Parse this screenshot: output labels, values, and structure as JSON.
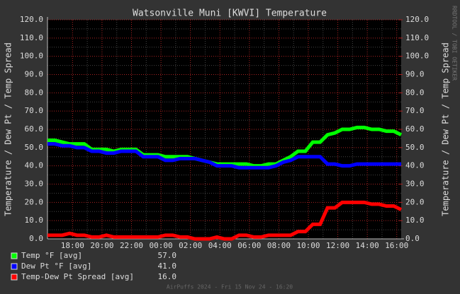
{
  "chart_data": {
    "type": "line",
    "title": "Watsonville Muni [KWVI] Temperature",
    "ylabel": "Temperature / Dew Pt / Temp Spread",
    "watermark": "RRDTOOL / TOBI OETIKER",
    "footer": "AirPuffs 2024 - Fri 15 Nov 24 - 16:20",
    "x": [
      0,
      0.5,
      1,
      1.5,
      2,
      2.5,
      3,
      3.5,
      4,
      4.5,
      5,
      5.5,
      6,
      6.5,
      7,
      7.5,
      8,
      8.5,
      9,
      9.5,
      10,
      10.5,
      11,
      11.5,
      12,
      12.5,
      13,
      13.5,
      14,
      14.5,
      15,
      15.5,
      16,
      16.5,
      17,
      17.5,
      18,
      18.5,
      19,
      19.5,
      20,
      20.5,
      21,
      21.5,
      22,
      22.5,
      23,
      23.5,
      24
    ],
    "xlim": [
      0,
      24
    ],
    "xticks": [
      {
        "value": 1.7,
        "label": "18:00"
      },
      {
        "value": 3.7,
        "label": "20:00"
      },
      {
        "value": 5.7,
        "label": "22:00"
      },
      {
        "value": 7.7,
        "label": "00:00"
      },
      {
        "value": 9.7,
        "label": "02:00"
      },
      {
        "value": 11.7,
        "label": "04:00"
      },
      {
        "value": 13.7,
        "label": "06:00"
      },
      {
        "value": 15.7,
        "label": "08:00"
      },
      {
        "value": 17.7,
        "label": "10:00"
      },
      {
        "value": 19.7,
        "label": "12:00"
      },
      {
        "value": 21.7,
        "label": "14:00"
      },
      {
        "value": 23.7,
        "label": "16:00"
      }
    ],
    "ylim": [
      0,
      120
    ],
    "yticks": [
      {
        "value": 0,
        "label": "0.0"
      },
      {
        "value": 10,
        "label": "10.0"
      },
      {
        "value": 20,
        "label": "20.0"
      },
      {
        "value": 30,
        "label": "30.0"
      },
      {
        "value": 40,
        "label": "40.0"
      },
      {
        "value": 50,
        "label": "50.0"
      },
      {
        "value": 60,
        "label": "60.0"
      },
      {
        "value": 70,
        "label": "70.0"
      },
      {
        "value": 80,
        "label": "80.0"
      },
      {
        "value": 90,
        "label": "90.0"
      },
      {
        "value": 100,
        "label": "100.0"
      },
      {
        "value": 110,
        "label": "110.0"
      },
      {
        "value": 120,
        "label": "120.0"
      }
    ],
    "y2lim": [
      0,
      120
    ],
    "y2ticks": [
      {
        "value": 0,
        "label": "0.0"
      },
      {
        "value": 10,
        "label": "10.0"
      },
      {
        "value": 20,
        "label": "20.0"
      },
      {
        "value": 30,
        "label": "30.0"
      },
      {
        "value": 40,
        "label": "40.0"
      },
      {
        "value": 50,
        "label": "50.0"
      },
      {
        "value": 60,
        "label": "60.0"
      },
      {
        "value": 70,
        "label": "70.0"
      },
      {
        "value": 80,
        "label": "80.0"
      },
      {
        "value": 90,
        "label": "90.0"
      },
      {
        "value": 100,
        "label": "100.0"
      },
      {
        "value": 110,
        "label": "110.0"
      },
      {
        "value": 120,
        "label": "120.0"
      }
    ],
    "grid": true,
    "series": [
      {
        "name": "Temp °F [avg]",
        "color": "#00ff00",
        "legend_value": "57.0",
        "values": [
          54,
          54,
          53,
          52,
          52,
          52,
          49,
          49,
          49,
          48,
          49,
          49,
          49,
          46,
          46,
          46,
          45,
          45,
          45,
          45,
          44,
          43,
          42,
          41,
          41,
          41,
          41,
          41,
          40,
          40,
          41,
          41,
          43,
          45,
          48,
          48,
          53,
          53,
          57,
          58,
          60,
          60,
          61,
          61,
          60,
          60,
          59,
          59,
          57
        ]
      },
      {
        "name": "Dew Pt °F [avg]",
        "color": "#0000ff",
        "legend_value": "41.0",
        "values": [
          52,
          52,
          51,
          51,
          50,
          50,
          48,
          48,
          47,
          47,
          48,
          48,
          48,
          45,
          45,
          45,
          43,
          43,
          44,
          44,
          44,
          43,
          42,
          40,
          40,
          40,
          39,
          39,
          39,
          39,
          39,
          40,
          42,
          43,
          45,
          45,
          45,
          45,
          41,
          41,
          40,
          40,
          41,
          41,
          41,
          41,
          41,
          41,
          41
        ]
      },
      {
        "name": "Temp-Dew Pt Spread [avg]",
        "color": "#ff0000",
        "legend_value": "16.0",
        "values": [
          2,
          2,
          2,
          3,
          2,
          2,
          1,
          1,
          2,
          1,
          1,
          1,
          1,
          1,
          1,
          1,
          2,
          2,
          1,
          1,
          0,
          0,
          0,
          1,
          0,
          0,
          2,
          2,
          1,
          1,
          2,
          2,
          2,
          2,
          4,
          4,
          8,
          8,
          17,
          17,
          20,
          20,
          20,
          20,
          19,
          19,
          18,
          18,
          16
        ]
      }
    ]
  }
}
